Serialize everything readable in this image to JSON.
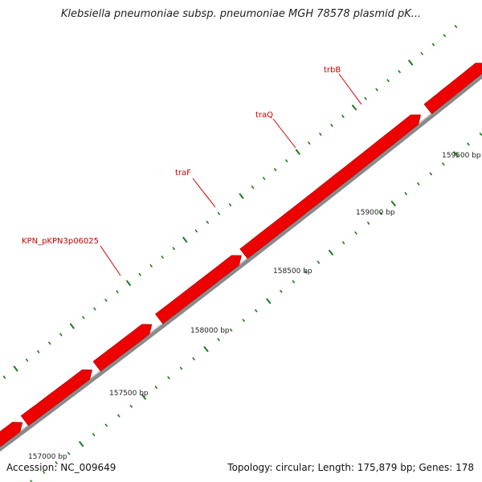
{
  "title": "Klebsiella pneumoniae subsp. pneumoniae MGH 78578 plasmid pK...",
  "footer": {
    "accession": "Accession: NC_009649",
    "summary": "Topology: circular; Length: 175,879 bp; Genes: 178"
  },
  "colors": {
    "gene": "#ee0000",
    "gene_shade": "#b80000",
    "backbone": "#8a8a8a",
    "tick": "#1e7a1e",
    "label": "#cc0000"
  },
  "scale": {
    "unit": "bp",
    "labeled_ticks": [
      {
        "pos": 157000,
        "text": "157000 bp"
      },
      {
        "pos": 157500,
        "text": "157500 bp"
      },
      {
        "pos": 158000,
        "text": "158000 bp"
      },
      {
        "pos": 158500,
        "text": "158500 bp"
      },
      {
        "pos": 159000,
        "text": "159000 bp"
      },
      {
        "pos": 159500,
        "text": "159500 bp"
      }
    ]
  },
  "gene_labels": [
    {
      "name": "KPN_pKPN3p06025"
    },
    {
      "name": "traF"
    },
    {
      "name": "traQ"
    },
    {
      "name": "trbB"
    }
  ]
}
